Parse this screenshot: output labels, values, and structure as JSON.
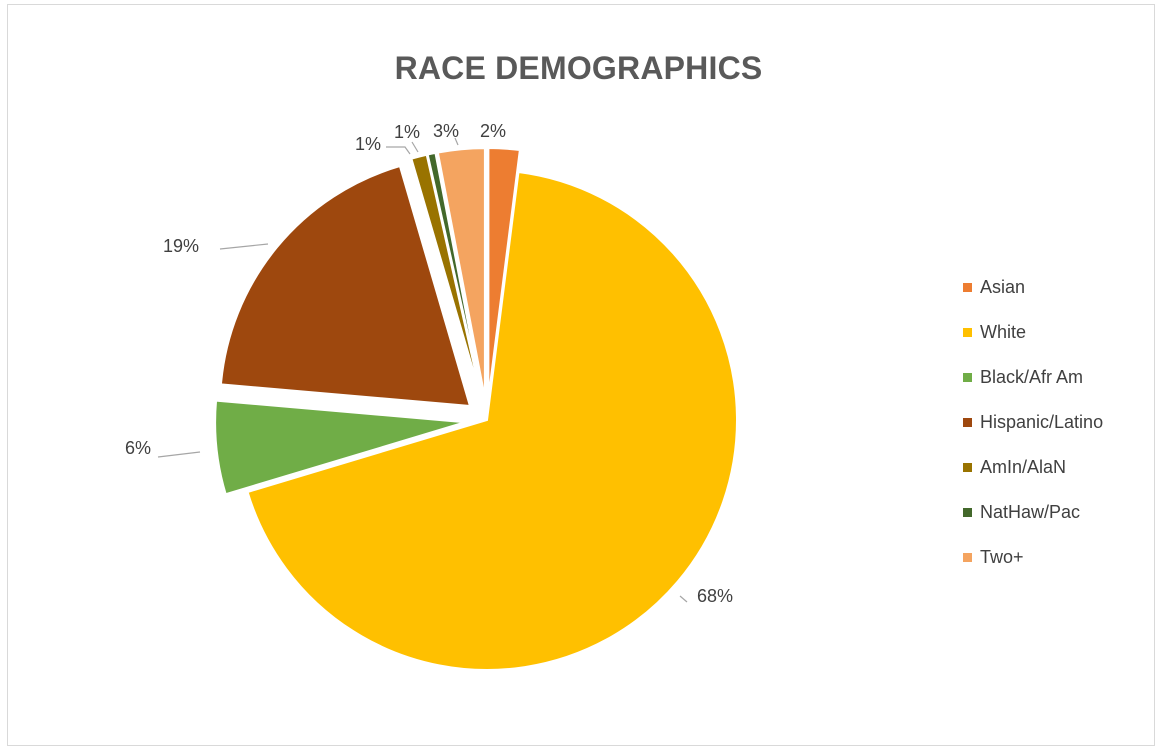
{
  "chart_data": {
    "type": "pie",
    "title": "RACE DEMOGRAPHICS",
    "legend_position": "right",
    "slices": [
      {
        "name": "Asian",
        "value": 2,
        "label": "2%",
        "color": "#ED7D31",
        "exploded": true
      },
      {
        "name": "White",
        "value": 68,
        "label": "68%",
        "color": "#FFC000",
        "exploded": false
      },
      {
        "name": "Black/Afr Am",
        "value": 6,
        "label": "6%",
        "color": "#70AD47",
        "exploded": true
      },
      {
        "name": "Hispanic/Latino",
        "value": 19,
        "label": "19%",
        "color": "#9E480E",
        "exploded": true
      },
      {
        "name": "AmIn/AlaN",
        "value": 1,
        "label": "1%",
        "color": "#997300",
        "exploded": true
      },
      {
        "name": "NatHaw/Pac",
        "value": 0.5,
        "label": "1%",
        "color": "#43682B",
        "exploded": true
      },
      {
        "name": "Two+",
        "value": 3,
        "label": "3%",
        "color": "#F4A460",
        "exploded": true
      }
    ]
  }
}
